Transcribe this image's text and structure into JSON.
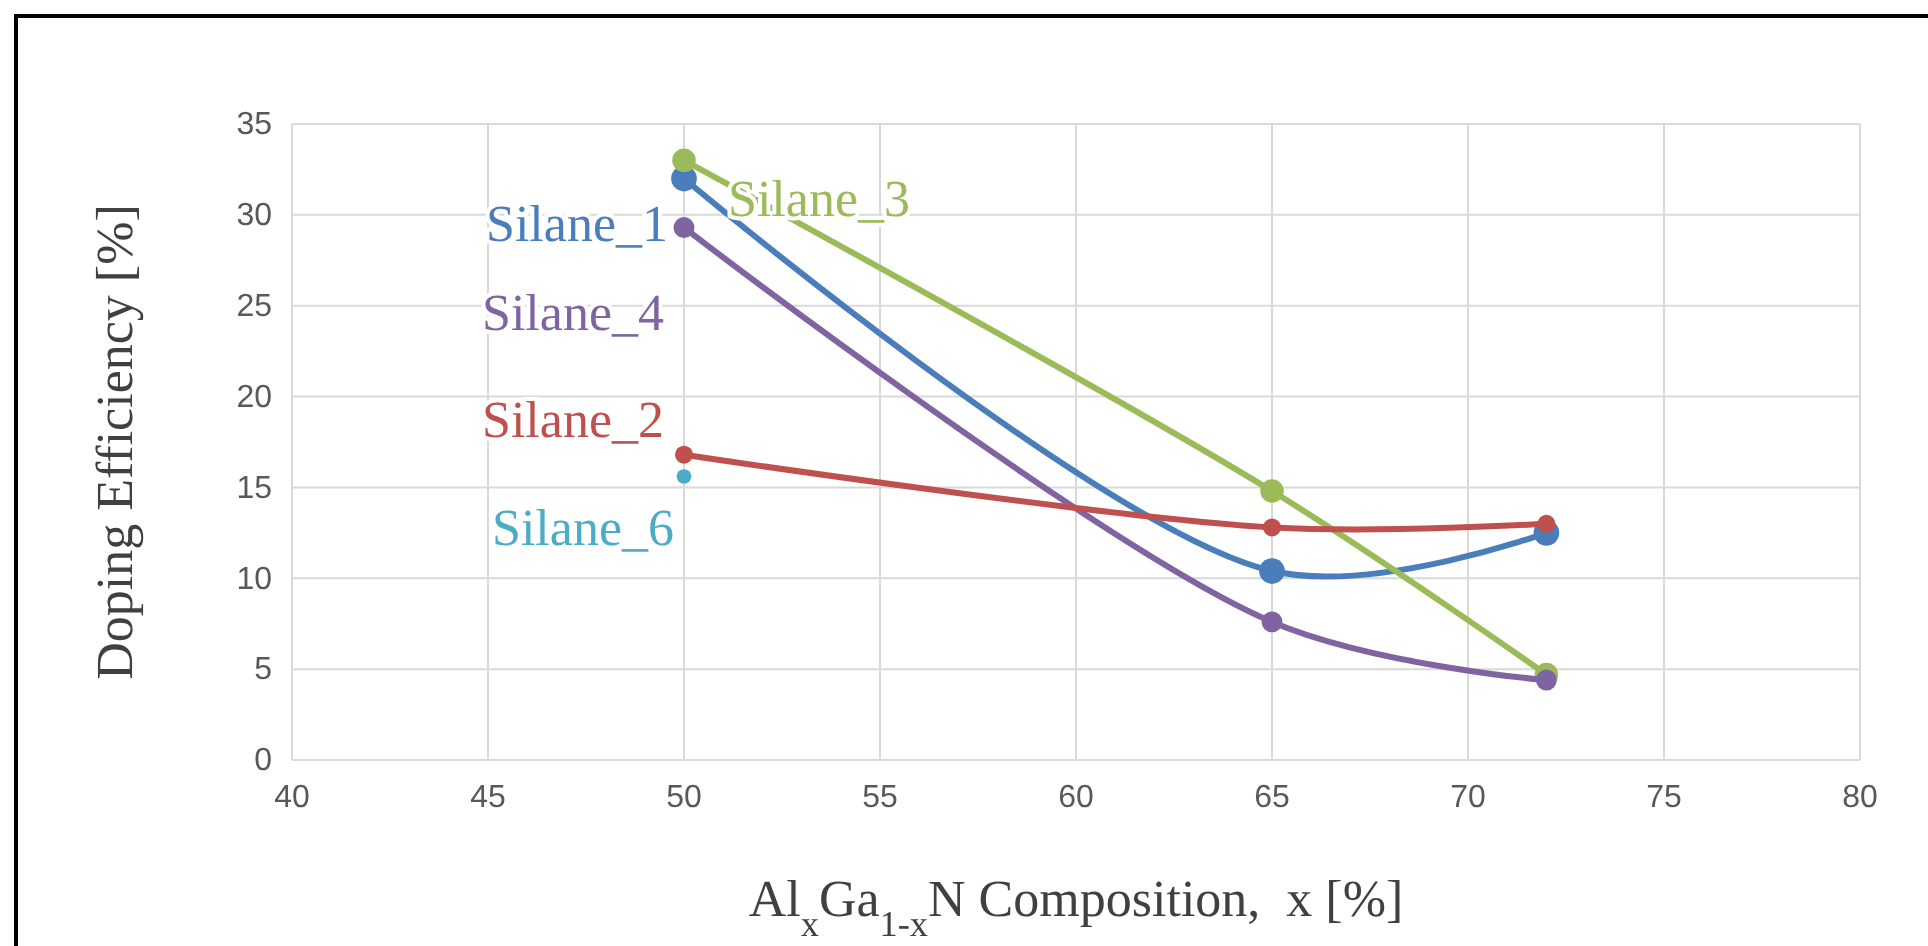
{
  "chart_data": {
    "type": "line",
    "xlabel": "Al$_{x}$Ga$_{1-x}$N Composition,  x [%]",
    "ylabel": "Doping Efficiency [%]",
    "xlim": [
      40,
      80
    ],
    "xticks": [
      40,
      45,
      50,
      55,
      60,
      65,
      70,
      75,
      80
    ],
    "ylim": [
      0,
      35
    ],
    "yticks": [
      0,
      5,
      10,
      15,
      20,
      25,
      30,
      35
    ],
    "grid": true,
    "legend": false,
    "marker": "circle",
    "line_style": "solid",
    "series": [
      {
        "name": "Silane_1",
        "color": "#4a7ebb",
        "x": [
          50,
          65,
          72
        ],
        "values": [
          32,
          10.4,
          12.5
        ]
      },
      {
        "name": "Silane_3",
        "color": "#9bbb59",
        "x": [
          50,
          65,
          72
        ],
        "values": [
          33,
          14.8,
          4.7
        ]
      },
      {
        "name": "Silane_4",
        "color": "#8064a2",
        "x": [
          50,
          65,
          72
        ],
        "values": [
          29.3,
          7.6,
          4.4
        ]
      },
      {
        "name": "Silane_2",
        "color": "#c0504d",
        "x": [
          50,
          65,
          72
        ],
        "values": [
          16.8,
          12.8,
          13
        ]
      },
      {
        "name": "Silane_6",
        "color": "#4bacc6",
        "type": "scatter",
        "x": [
          50
        ],
        "values": [
          15.6
        ]
      }
    ]
  }
}
